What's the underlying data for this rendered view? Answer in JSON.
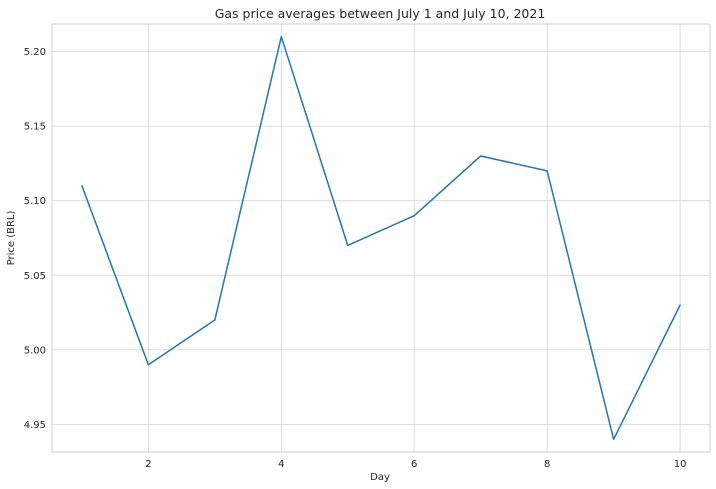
{
  "chart_data": {
    "type": "line",
    "title": "Gas price averages between July 1 and July 10, 2021",
    "xlabel": "Day",
    "ylabel": "Price (BRL)",
    "x": [
      1,
      2,
      3,
      4,
      5,
      6,
      7,
      8,
      9,
      10
    ],
    "series": [
      {
        "values": [
          5.11,
          4.99,
          5.02,
          5.21,
          5.07,
          5.09,
          5.13,
          5.12,
          4.94,
          5.03
        ],
        "color": "#1f77b4"
      }
    ],
    "xlim": [
      0.55,
      10.45
    ],
    "ylim": [
      4.9315,
      5.2185
    ],
    "x_ticks": [
      2,
      4,
      6,
      8,
      10
    ],
    "x_tick_labels": [
      "2",
      "4",
      "6",
      "8",
      "10"
    ],
    "y_ticks": [
      4.95,
      5.0,
      5.05,
      5.1,
      5.15,
      5.2
    ],
    "y_tick_labels": [
      "4.95",
      "5.00",
      "5.05",
      "5.10",
      "5.15",
      "5.20"
    ],
    "grid": true,
    "legend": "none"
  }
}
